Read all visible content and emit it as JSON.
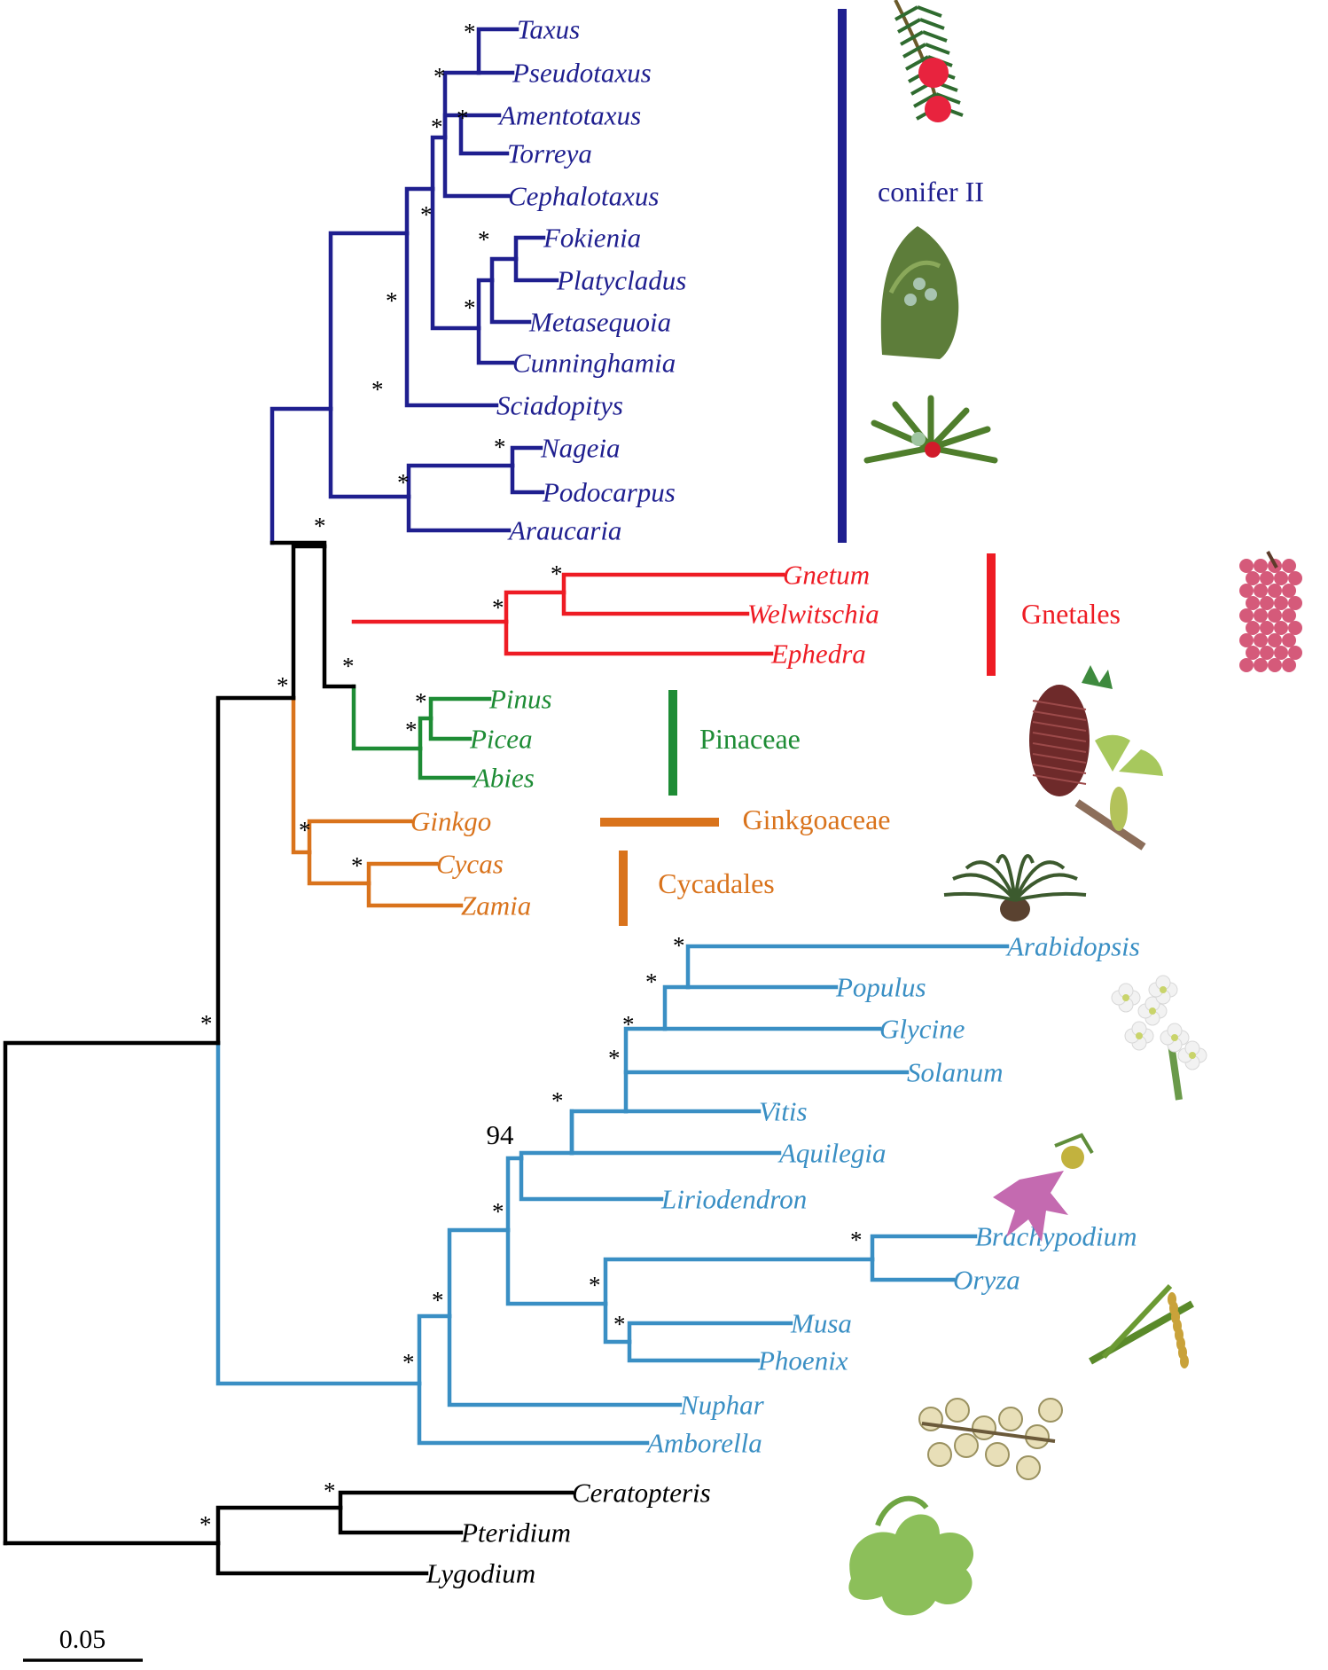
{
  "colors": {
    "conifer": "#1f1f8f",
    "gnetales": "#ee1c24",
    "pinaceae": "#1e8c35",
    "ginkgo_cycad": "#d9731c",
    "angiosperm": "#3a8fc4",
    "outgroup": "#000000"
  },
  "clades": [
    {
      "key": "conifer",
      "label": "conifer II"
    },
    {
      "key": "gnetales",
      "label": "Gnetales"
    },
    {
      "key": "pinaceae",
      "label": "Pinaceae"
    },
    {
      "key": "ginkgoaceae",
      "label": "Ginkgoaceae"
    },
    {
      "key": "cycadales",
      "label": "Cycadales"
    }
  ],
  "taxa": [
    {
      "name": "Taxus",
      "group": "conifer"
    },
    {
      "name": "Pseudotaxus",
      "group": "conifer"
    },
    {
      "name": "Amentotaxus",
      "group": "conifer"
    },
    {
      "name": "Torreya",
      "group": "conifer"
    },
    {
      "name": "Cephalotaxus",
      "group": "conifer"
    },
    {
      "name": "Fokienia",
      "group": "conifer"
    },
    {
      "name": "Platycladus",
      "group": "conifer"
    },
    {
      "name": "Metasequoia",
      "group": "conifer"
    },
    {
      "name": "Cunninghamia",
      "group": "conifer"
    },
    {
      "name": "Sciadopitys",
      "group": "conifer"
    },
    {
      "name": "Nageia",
      "group": "conifer"
    },
    {
      "name": "Podocarpus",
      "group": "conifer"
    },
    {
      "name": "Araucaria",
      "group": "conifer"
    },
    {
      "name": "Gnetum",
      "group": "gnetales"
    },
    {
      "name": "Welwitschia",
      "group": "gnetales"
    },
    {
      "name": "Ephedra",
      "group": "gnetales"
    },
    {
      "name": "Pinus",
      "group": "pinaceae"
    },
    {
      "name": "Picea",
      "group": "pinaceae"
    },
    {
      "name": "Abies",
      "group": "pinaceae"
    },
    {
      "name": "Ginkgo",
      "group": "ginkgo_cycad"
    },
    {
      "name": "Cycas",
      "group": "ginkgo_cycad"
    },
    {
      "name": "Zamia",
      "group": "ginkgo_cycad"
    },
    {
      "name": "Arabidopsis",
      "group": "angiosperm"
    },
    {
      "name": "Populus",
      "group": "angiosperm"
    },
    {
      "name": "Glycine",
      "group": "angiosperm"
    },
    {
      "name": "Solanum",
      "group": "angiosperm"
    },
    {
      "name": "Vitis",
      "group": "angiosperm"
    },
    {
      "name": "Aquilegia",
      "group": "angiosperm"
    },
    {
      "name": "Liriodendron",
      "group": "angiosperm"
    },
    {
      "name": "Brachypodium",
      "group": "angiosperm"
    },
    {
      "name": "Oryza",
      "group": "angiosperm"
    },
    {
      "name": "Musa",
      "group": "angiosperm"
    },
    {
      "name": "Phoenix",
      "group": "angiosperm"
    },
    {
      "name": "Nuphar",
      "group": "angiosperm"
    },
    {
      "name": "Amborella",
      "group": "angiosperm"
    },
    {
      "name": "Ceratopteris",
      "group": "outgroup"
    },
    {
      "name": "Pteridium",
      "group": "outgroup"
    },
    {
      "name": "Lygodium",
      "group": "outgroup"
    }
  ],
  "support": {
    "full": "*",
    "numeric": "94"
  },
  "scale_bar": {
    "label": "0.05",
    "value": 0.05
  },
  "images": [
    "yew-branch-image",
    "cypress-foliage-image",
    "podocarpus-image",
    "gnetum-fruit-image",
    "spruce-cone-image",
    "ginkgo-leaf-image",
    "cycad-image",
    "arabidopsis-flower-image",
    "aquilegia-flower-image",
    "rice-panicle-image",
    "amborella-flower-image",
    "fern-image"
  ]
}
